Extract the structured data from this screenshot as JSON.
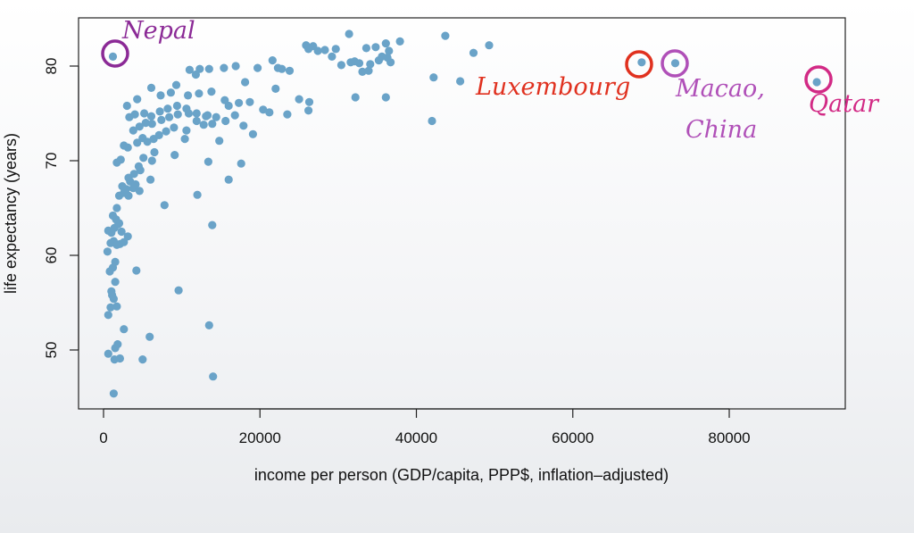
{
  "chart_data": {
    "type": "scatter",
    "xlabel": "income per person (GDP/capita, PPP$, inflation–adjusted)",
    "ylabel": "life expectancy (years)",
    "xlim": [
      -3000,
      95000
    ],
    "ylim": [
      44,
      84.5
    ],
    "x_ticks": [
      0,
      20000,
      40000,
      60000,
      80000
    ],
    "y_ticks": [
      50,
      60,
      70,
      80
    ],
    "x_tick_labels": [
      "0",
      "20000",
      "40000",
      "60000",
      "80000"
    ],
    "y_tick_labels": [
      "50",
      "60",
      "70",
      "80"
    ],
    "grid": false,
    "point_color": "#6aa3c8",
    "points": [
      [
        1200,
        81.0
      ],
      [
        68800,
        80.4
      ],
      [
        73100,
        80.3
      ],
      [
        91200,
        78.3
      ],
      [
        1300,
        45.4
      ],
      [
        1400,
        49.0
      ],
      [
        600,
        49.6
      ],
      [
        1800,
        50.6
      ],
      [
        1500,
        50.2
      ],
      [
        2100,
        49.1
      ],
      [
        2600,
        52.2
      ],
      [
        5000,
        49.0
      ],
      [
        5900,
        51.4
      ],
      [
        9600,
        56.3
      ],
      [
        13500,
        52.6
      ],
      [
        14000,
        47.2
      ],
      [
        13900,
        63.2
      ],
      [
        4200,
        58.4
      ],
      [
        600,
        53.7
      ],
      [
        900,
        54.5
      ],
      [
        1700,
        54.6
      ],
      [
        1100,
        55.8
      ],
      [
        1300,
        55.4
      ],
      [
        1500,
        57.2
      ],
      [
        1000,
        56.2
      ],
      [
        1200,
        58.7
      ],
      [
        800,
        58.3
      ],
      [
        1500,
        59.3
      ],
      [
        500,
        60.4
      ],
      [
        900,
        61.3
      ],
      [
        1300,
        61.5
      ],
      [
        1700,
        61.1
      ],
      [
        2100,
        61.2
      ],
      [
        2600,
        61.4
      ],
      [
        3100,
        62.0
      ],
      [
        1000,
        62.4
      ],
      [
        1400,
        62.9
      ],
      [
        1900,
        63.3
      ],
      [
        2300,
        62.5
      ],
      [
        600,
        62.6
      ],
      [
        1200,
        64.2
      ],
      [
        1600,
        63.8
      ],
      [
        2000,
        63.4
      ],
      [
        1700,
        65.0
      ],
      [
        7800,
        65.3
      ],
      [
        12000,
        66.4
      ],
      [
        2000,
        66.3
      ],
      [
        2600,
        66.6
      ],
      [
        3200,
        66.3
      ],
      [
        3800,
        67.1
      ],
      [
        4600,
        66.8
      ],
      [
        2400,
        67.3
      ],
      [
        2900,
        67.0
      ],
      [
        3400,
        67.8
      ],
      [
        4100,
        67.5
      ],
      [
        3200,
        68.2
      ],
      [
        3900,
        68.6
      ],
      [
        4700,
        69.0
      ],
      [
        6000,
        68.0
      ],
      [
        4500,
        69.4
      ],
      [
        5100,
        70.3
      ],
      [
        6200,
        70.0
      ],
      [
        1700,
        69.8
      ],
      [
        2200,
        70.1
      ],
      [
        6500,
        70.9
      ],
      [
        9100,
        70.6
      ],
      [
        13400,
        69.9
      ],
      [
        16000,
        68.0
      ],
      [
        17600,
        69.7
      ],
      [
        2600,
        71.6
      ],
      [
        3100,
        71.4
      ],
      [
        4300,
        71.9
      ],
      [
        5000,
        72.4
      ],
      [
        5600,
        72.0
      ],
      [
        6400,
        72.3
      ],
      [
        7100,
        72.7
      ],
      [
        8000,
        73.1
      ],
      [
        9000,
        73.5
      ],
      [
        10600,
        73.2
      ],
      [
        3800,
        73.2
      ],
      [
        4600,
        73.6
      ],
      [
        5400,
        74.0
      ],
      [
        6200,
        73.9
      ],
      [
        7400,
        74.3
      ],
      [
        8400,
        74.6
      ],
      [
        9500,
        74.9
      ],
      [
        10900,
        75.0
      ],
      [
        11900,
        74.2
      ],
      [
        12800,
        73.8
      ],
      [
        13900,
        73.9
      ],
      [
        3300,
        74.6
      ],
      [
        4000,
        74.9
      ],
      [
        5200,
        75.0
      ],
      [
        6100,
        74.7
      ],
      [
        7200,
        75.2
      ],
      [
        8200,
        75.5
      ],
      [
        9400,
        75.8
      ],
      [
        10600,
        75.5
      ],
      [
        11900,
        75.0
      ],
      [
        13300,
        74.8
      ],
      [
        14400,
        74.6
      ],
      [
        15600,
        74.2
      ],
      [
        16800,
        74.8
      ],
      [
        17900,
        73.7
      ],
      [
        19100,
        72.8
      ],
      [
        16000,
        75.8
      ],
      [
        3000,
        75.8
      ],
      [
        4300,
        76.5
      ],
      [
        7300,
        76.9
      ],
      [
        8600,
        77.2
      ],
      [
        10800,
        76.9
      ],
      [
        12200,
        77.1
      ],
      [
        13800,
        77.3
      ],
      [
        15500,
        76.4
      ],
      [
        17300,
        76.1
      ],
      [
        18700,
        76.2
      ],
      [
        20400,
        75.4
      ],
      [
        21200,
        75.1
      ],
      [
        23500,
        74.9
      ],
      [
        25000,
        76.5
      ],
      [
        26300,
        76.2
      ],
      [
        26200,
        75.3
      ],
      [
        6100,
        77.7
      ],
      [
        9300,
        78.0
      ],
      [
        11000,
        79.6
      ],
      [
        11800,
        79.1
      ],
      [
        13500,
        79.7
      ],
      [
        15400,
        79.8
      ],
      [
        19700,
        79.8
      ],
      [
        21600,
        80.6
      ],
      [
        22300,
        79.8
      ],
      [
        22800,
        79.7
      ],
      [
        23800,
        79.5
      ],
      [
        22000,
        77.6
      ],
      [
        25900,
        82.2
      ],
      [
        26200,
        81.8
      ],
      [
        26800,
        82.1
      ],
      [
        27400,
        81.6
      ],
      [
        29700,
        81.8
      ],
      [
        29200,
        81.0
      ],
      [
        31400,
        83.4
      ],
      [
        31600,
        80.4
      ],
      [
        32100,
        80.5
      ],
      [
        32700,
        80.3
      ],
      [
        33100,
        79.4
      ],
      [
        33600,
        81.9
      ],
      [
        34800,
        82.0
      ],
      [
        35600,
        81.0
      ],
      [
        36100,
        82.4
      ],
      [
        36500,
        81.6
      ],
      [
        37900,
        82.6
      ],
      [
        35200,
        80.6
      ],
      [
        36300,
        80.9
      ],
      [
        36100,
        76.7
      ],
      [
        32200,
        76.7
      ],
      [
        42000,
        74.2
      ],
      [
        42200,
        78.8
      ],
      [
        43700,
        83.2
      ],
      [
        45600,
        78.4
      ],
      [
        47300,
        81.4
      ],
      [
        49300,
        82.2
      ],
      [
        16900,
        80.0
      ],
      [
        18100,
        78.3
      ],
      [
        33900,
        79.5
      ],
      [
        36700,
        80.4
      ],
      [
        34100,
        80.2
      ],
      [
        14800,
        72.1
      ],
      [
        13100,
        74.7
      ],
      [
        10400,
        72.3
      ],
      [
        12300,
        79.7
      ],
      [
        28300,
        81.7
      ],
      [
        30400,
        80.1
      ]
    ],
    "annotations": [
      {
        "text": "Nepal",
        "x": 1200,
        "y": 81.0,
        "color": "#8b2a96"
      },
      {
        "text": "Luxembourg",
        "x": 68800,
        "y": 80.4,
        "color": "#e0311f"
      },
      {
        "text": "Macao,",
        "text2": "China",
        "x": 73100,
        "y": 80.3,
        "color": "#b050b8"
      },
      {
        "text": "Qatar",
        "x": 91200,
        "y": 78.3,
        "color": "#d22a85"
      }
    ]
  }
}
